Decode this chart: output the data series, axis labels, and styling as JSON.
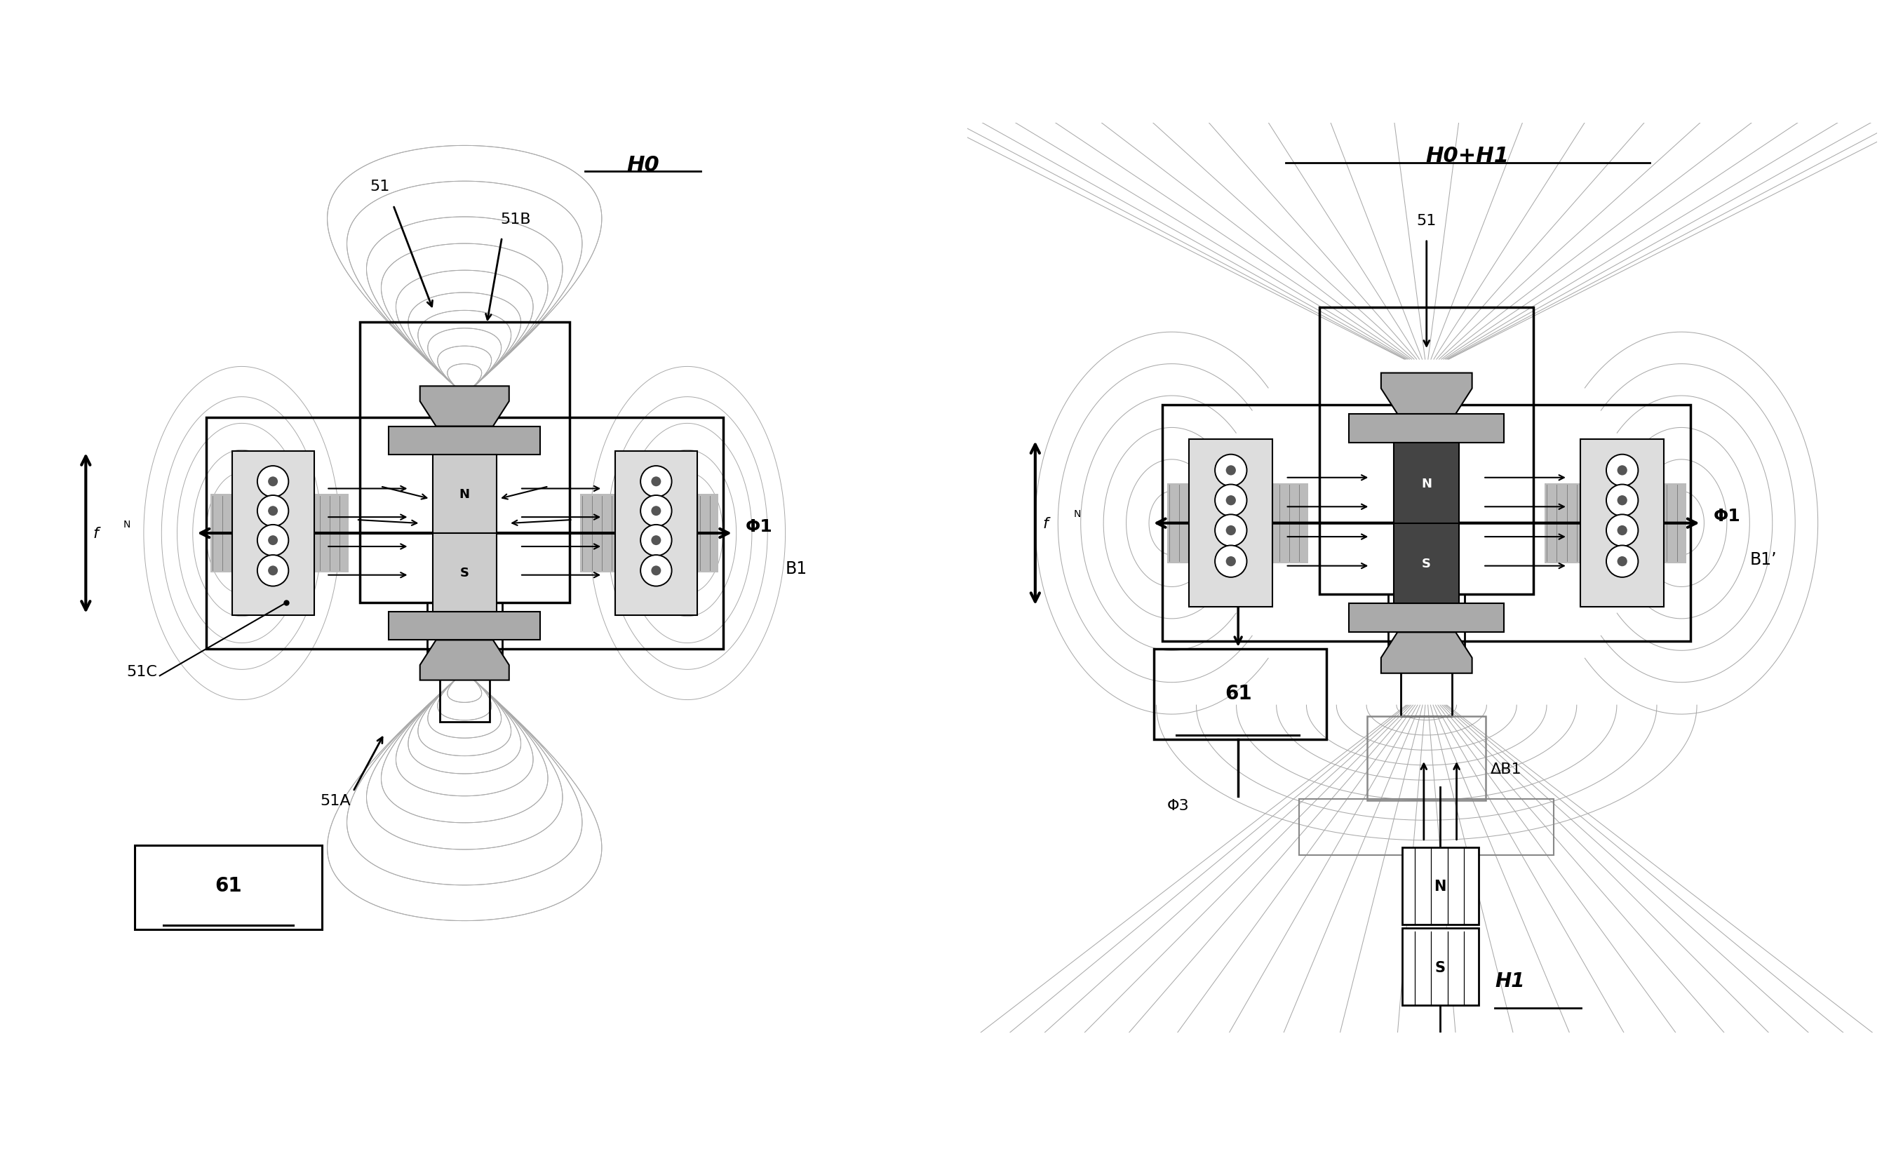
{
  "bg": "#ffffff",
  "lc": "#000000",
  "gc": "#888888",
  "lgc": "#aaaaaa",
  "fig_w": 27.03,
  "fig_h": 16.49,
  "title_left": "H0",
  "title_right": "H0+H1",
  "lbl_51": "51",
  "lbl_51A": "51A",
  "lbl_51B": "51B",
  "lbl_51C": "51C",
  "lbl_B1": "B1",
  "lbl_B1p": "B1’",
  "lbl_Phi1": "Φ1",
  "lbl_Phi3": "Φ3",
  "lbl_fN": "f",
  "lbl_61": "61",
  "lbl_dB1": "ΔB1",
  "lbl_H1": "H1",
  "lbl_N": "N",
  "lbl_S": "S"
}
